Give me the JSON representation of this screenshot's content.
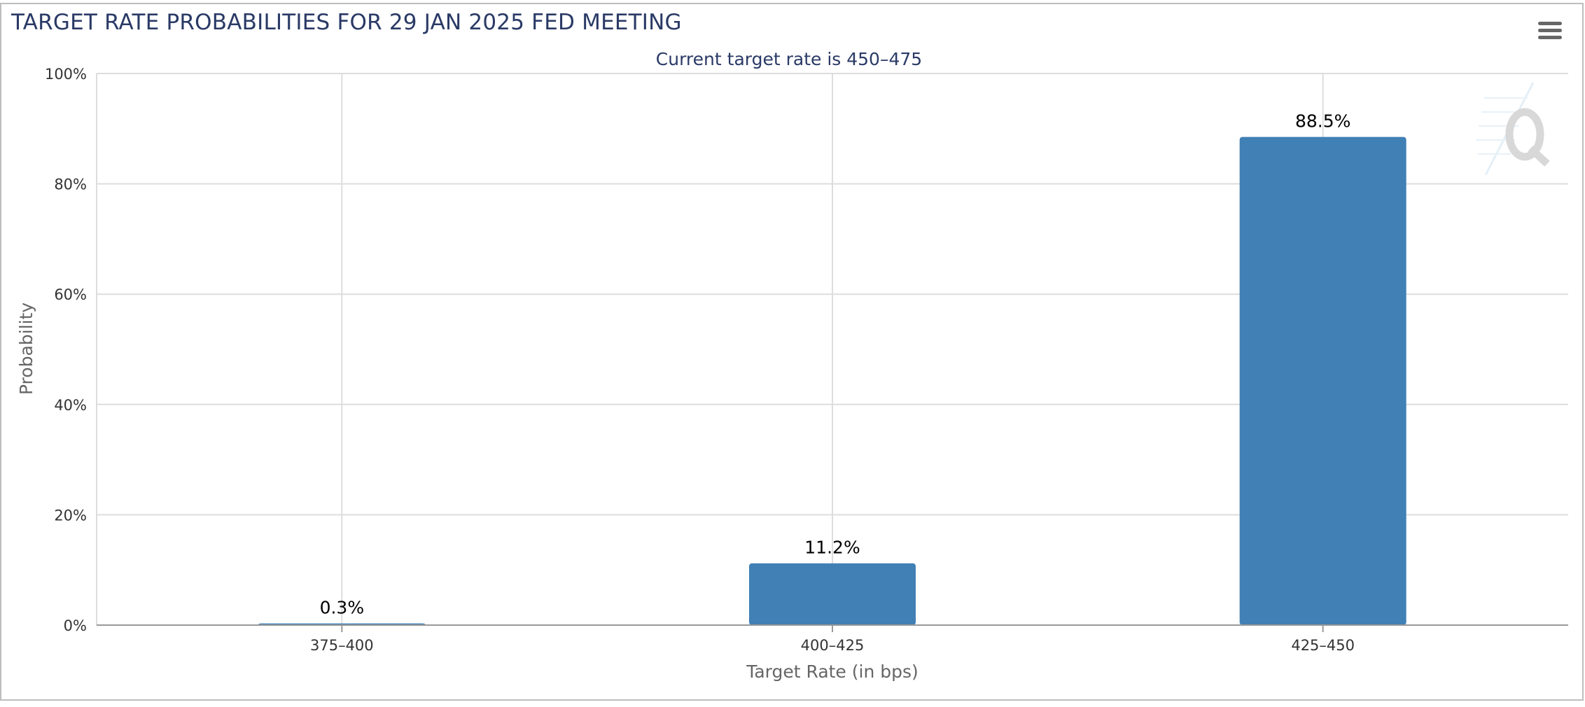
{
  "header": {
    "title": "TARGET RATE PROBABILITIES FOR 29 JAN 2025 FED MEETING"
  },
  "icons": {
    "menu": "hamburger-menu-icon",
    "watermark": "q-logo-icon"
  },
  "colors": {
    "bar": "#4080b5",
    "title": "#2a3a66",
    "grid": "#dddddd"
  },
  "chart_data": {
    "type": "bar",
    "title": "TARGET RATE PROBABILITIES FOR 29 JAN 2025 FED MEETING",
    "subtitle": "Current target rate is 450–475",
    "categories": [
      "375–400",
      "400–425",
      "425–450"
    ],
    "values": [
      0.3,
      11.2,
      88.5
    ],
    "data_labels": [
      "0.3%",
      "11.2%",
      "88.5%"
    ],
    "xlabel": "Target Rate (in bps)",
    "ylabel": "Probability",
    "ylim": [
      0,
      100
    ],
    "yticks": [
      0,
      20,
      40,
      60,
      80,
      100
    ],
    "ytick_labels": [
      "0%",
      "20%",
      "40%",
      "60%",
      "80%",
      "100%"
    ],
    "grid": true,
    "legend": "none"
  }
}
